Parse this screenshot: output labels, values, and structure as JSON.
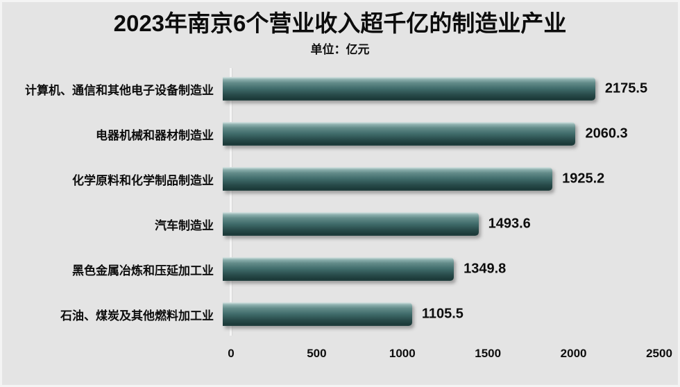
{
  "header": {
    "title": "2023年南京6个营业收入超千亿的制造业产业",
    "subtitle": "单位：亿元"
  },
  "chart_data": {
    "type": "bar",
    "orientation": "horizontal",
    "title": "2023年南京6个营业收入超千亿的制造业产业",
    "subtitle": "单位：亿元",
    "categories": [
      "计算机、通信和其他电子设备制造业",
      "电器机械和器材制造业",
      "化学原料和化学制品制造业",
      "汽车制造业",
      "黑色金属冶炼和压延加工业",
      "石油、煤炭及其他燃料加工业"
    ],
    "values": [
      2175.5,
      2060.3,
      1925.2,
      1493.6,
      1349.8,
      1105.5
    ],
    "value_labels": [
      "2175.5",
      "2060.3",
      "1925.2",
      "1493.6",
      "1349.8",
      "1105.5"
    ],
    "x_ticks": [
      "0",
      "500",
      "1000",
      "1500",
      "2000",
      "2500"
    ],
    "xlim": [
      0,
      2500
    ],
    "grid": "off",
    "legend": "none",
    "colors": {
      "bar_highlight": "#8fb1af",
      "bar_mid": "#3f6b6a",
      "bar_dark": "#1b3938",
      "background": "#e4e4e4",
      "text": "#0d0d0d"
    }
  }
}
